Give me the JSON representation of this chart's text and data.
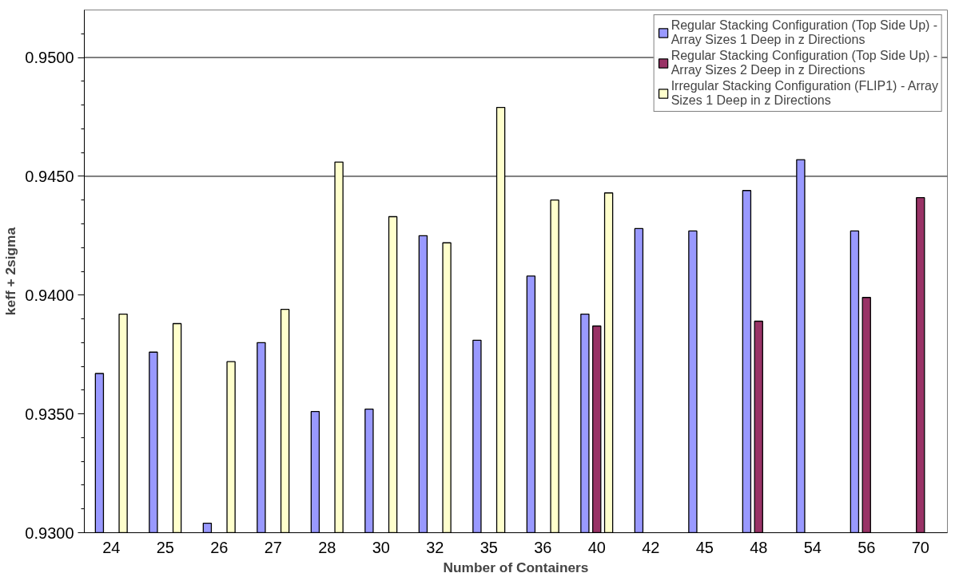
{
  "chart_data": {
    "type": "bar",
    "xlabel": "Number of Containers",
    "ylabel": "keff + 2sigma",
    "categories": [
      "24",
      "25",
      "26",
      "27",
      "28",
      "30",
      "32",
      "35",
      "36",
      "40",
      "42",
      "45",
      "48",
      "54",
      "56",
      "70"
    ],
    "series": [
      {
        "name": "Regular Stacking Configuration (Top Side Up) - Array Sizes 1 Deep in z Directions",
        "color": "#9999ff",
        "values": [
          0.9367,
          0.9376,
          0.9304,
          0.938,
          0.9351,
          0.9352,
          0.9425,
          0.9381,
          0.9408,
          0.9392,
          0.9428,
          0.9427,
          0.9444,
          0.9457,
          0.9427,
          null
        ]
      },
      {
        "name": "Regular Stacking Configuration (Top Side Up) - Array Sizes 2 Deep in z Directions",
        "color": "#993366",
        "values": [
          null,
          null,
          null,
          null,
          null,
          null,
          null,
          null,
          null,
          0.9387,
          null,
          null,
          0.9389,
          null,
          0.9399,
          0.9441
        ]
      },
      {
        "name": "Irregular Stacking Configuration (FLIP1) - Array Sizes 1 Deep in z Directions",
        "color": "#ffffcc",
        "values": [
          0.9392,
          0.9388,
          0.9372,
          0.9394,
          0.9456,
          0.9433,
          0.9422,
          0.9479,
          0.944,
          0.9443,
          null,
          null,
          null,
          null,
          null,
          null
        ]
      }
    ],
    "ylim": [
      0.93,
      0.952
    ],
    "yticks": [
      {
        "value": 0.93,
        "label": "0.9300"
      },
      {
        "value": 0.935,
        "label": "0.9350"
      },
      {
        "value": 0.94,
        "label": "0.9400"
      },
      {
        "value": 0.945,
        "label": "0.9450"
      },
      {
        "value": 0.95,
        "label": "0.9500"
      }
    ],
    "ref_lines": [
      {
        "axis": "y",
        "value": 0.945,
        "color": "#000000"
      },
      {
        "axis": "y",
        "value": 0.95,
        "color": "#000000"
      }
    ],
    "grid": false,
    "legend": "top right"
  }
}
